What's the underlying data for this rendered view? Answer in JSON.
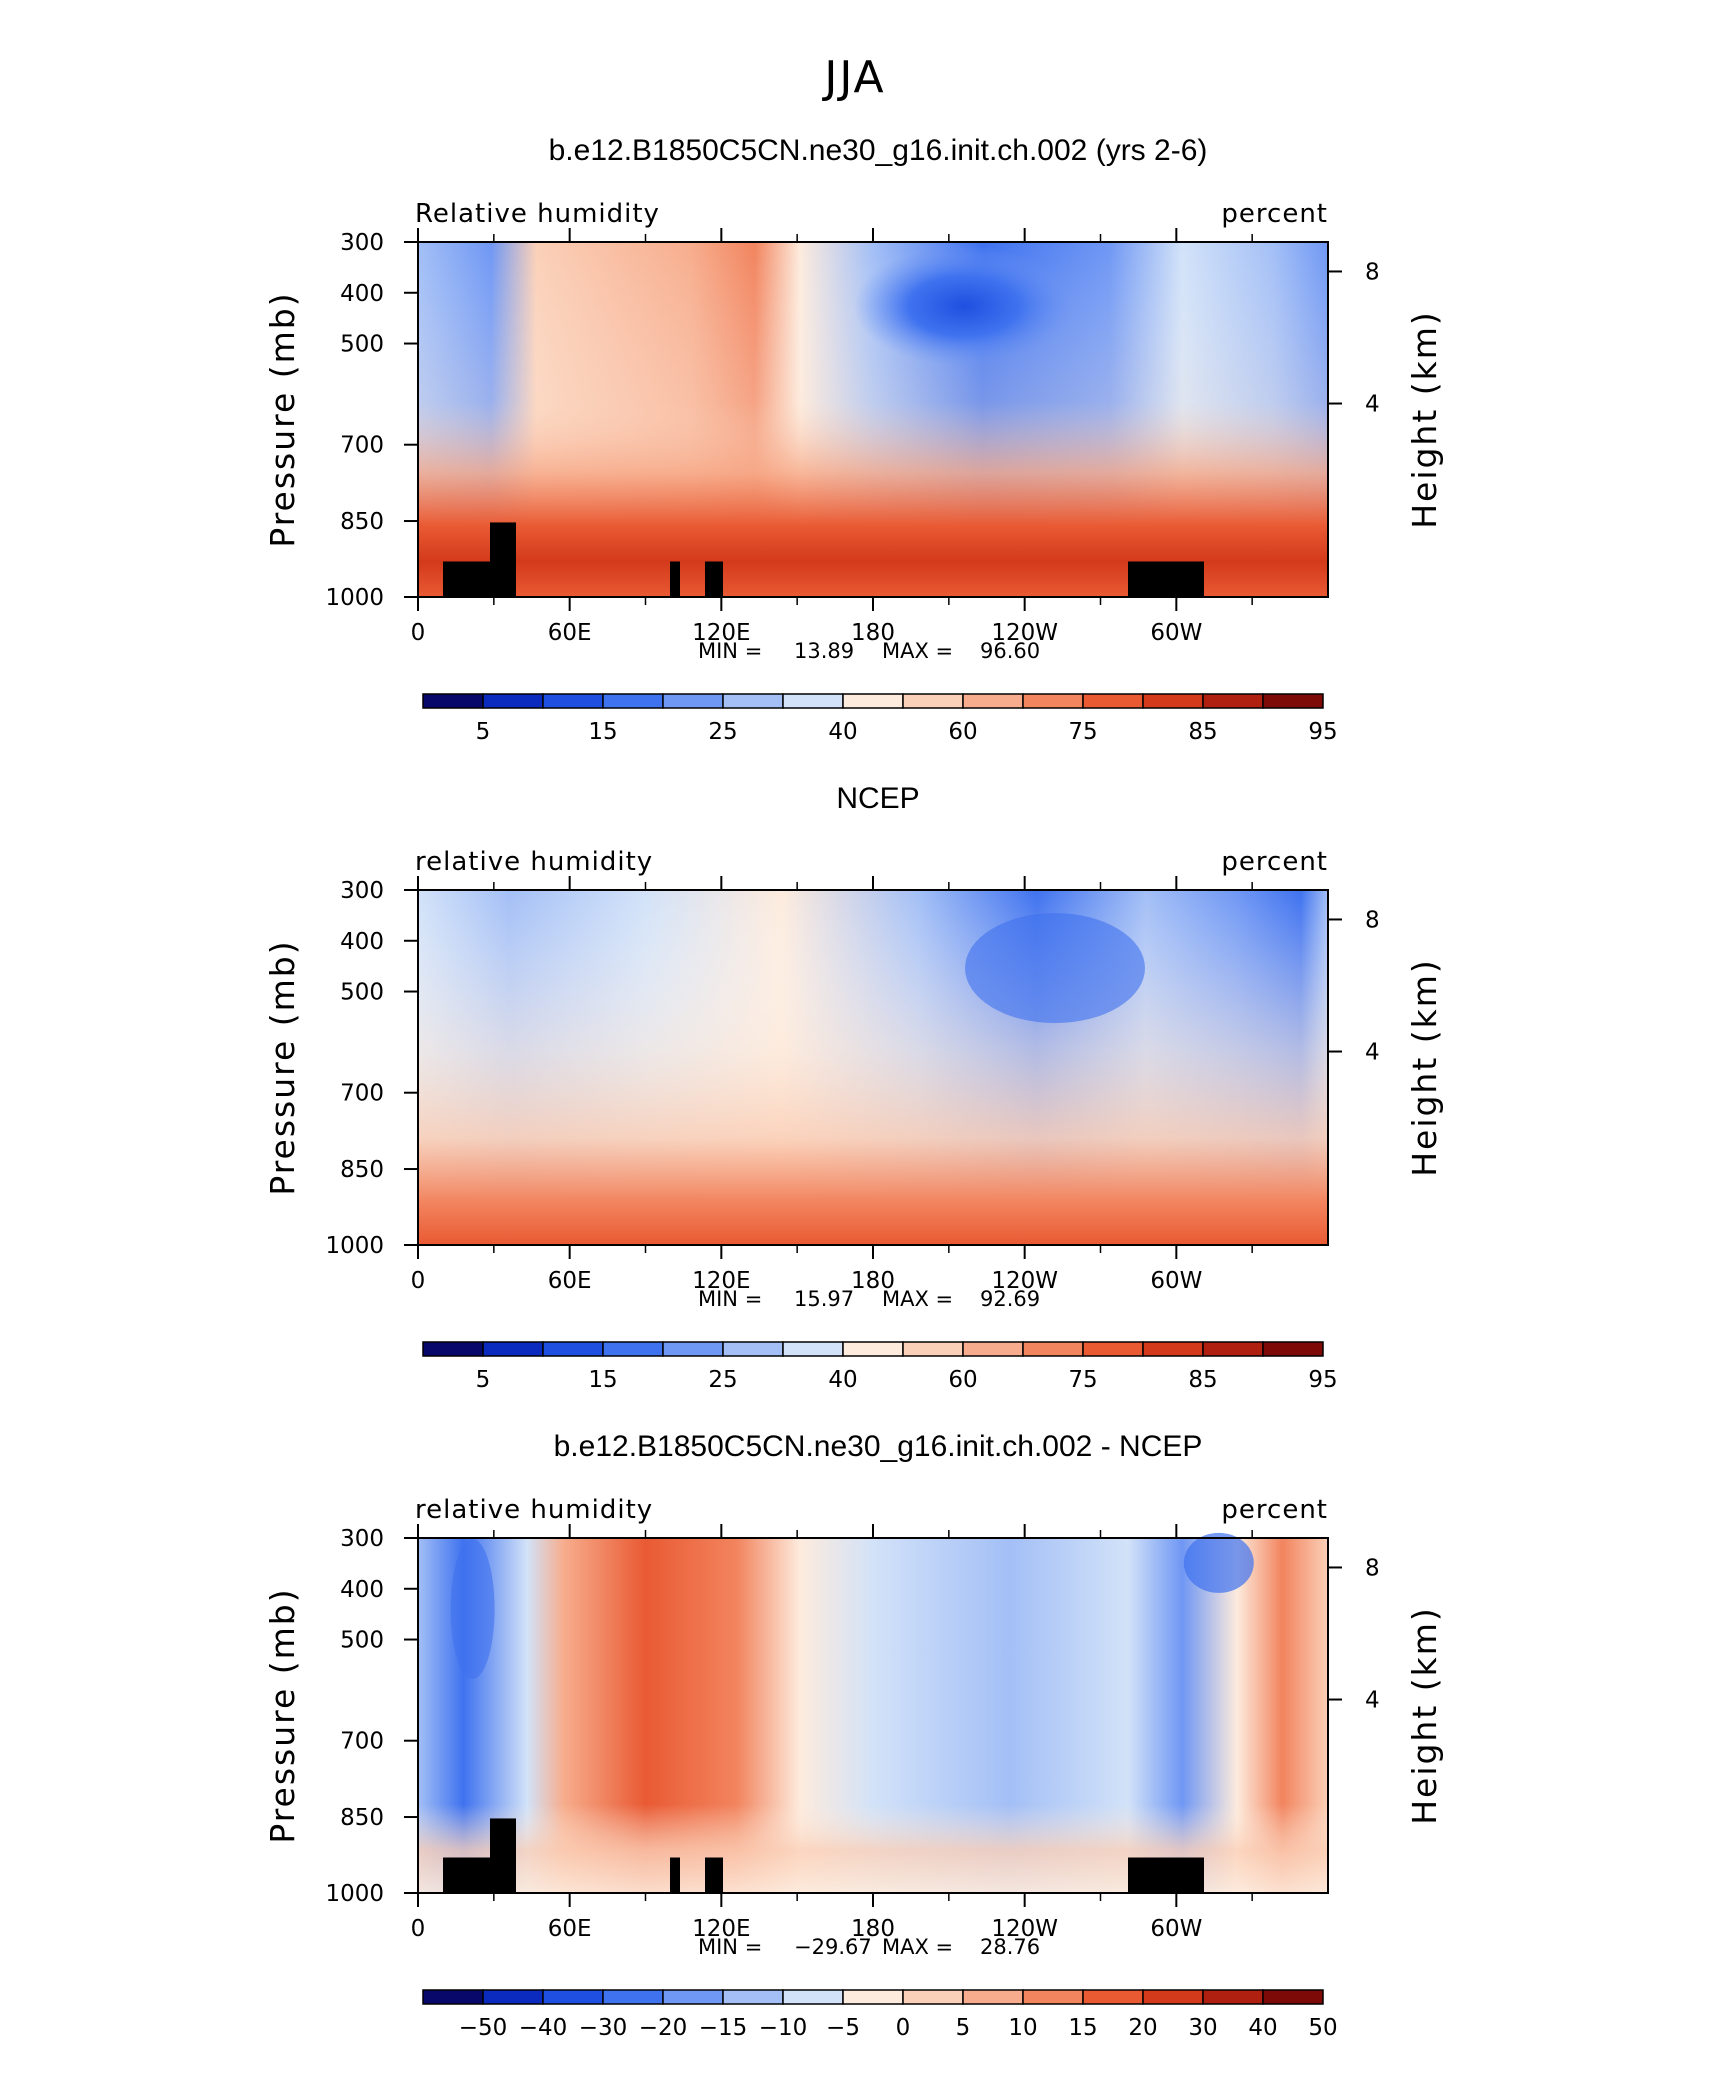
{
  "figure": {
    "title": "JJA"
  },
  "chart_data": [
    {
      "type": "heatmap",
      "title": "b.e12.B1850C5CN.ne30_g16.init.ch.002 (yrs 2-6)",
      "left_label": "Relative  humidity",
      "right_label": "percent",
      "ylabel": "Pressure  (mb)",
      "ylabel_right": "Height  (km)",
      "x_ticks": [
        "0",
        "60E",
        "120E",
        "180",
        "120W",
        "60W"
      ],
      "y_ticks": [
        "300",
        "400",
        "500",
        "700",
        "850",
        "1000"
      ],
      "y_right_ticks": [
        "8",
        "4"
      ],
      "xlim": [
        "0",
        "360"
      ],
      "ylim": [
        1000,
        300
      ],
      "min_label": "MIN =",
      "min": "13.89",
      "max_label": "MAX =",
      "max": "96.60",
      "colorbar_labels": [
        "5",
        "15",
        "25",
        "40",
        "60",
        "75",
        "85",
        "95"
      ],
      "terrain": true
    },
    {
      "type": "heatmap",
      "title": "NCEP",
      "left_label": "relative  humidity",
      "right_label": "percent",
      "ylabel": "Pressure  (mb)",
      "ylabel_right": "Height  (km)",
      "x_ticks": [
        "0",
        "60E",
        "120E",
        "180",
        "120W",
        "60W"
      ],
      "y_ticks": [
        "300",
        "400",
        "500",
        "700",
        "850",
        "1000"
      ],
      "y_right_ticks": [
        "8",
        "4"
      ],
      "xlim": [
        "0",
        "360"
      ],
      "ylim": [
        1000,
        300
      ],
      "min_label": "MIN =",
      "min": "15.97",
      "max_label": "MAX =",
      "max": "92.69",
      "colorbar_labels": [
        "5",
        "15",
        "25",
        "40",
        "60",
        "75",
        "85",
        "95"
      ],
      "terrain": false
    },
    {
      "type": "heatmap",
      "title": "b.e12.B1850C5CN.ne30_g16.init.ch.002 - NCEP",
      "left_label": "relative  humidity",
      "right_label": "percent",
      "ylabel": "Pressure  (mb)",
      "ylabel_right": "Height  (km)",
      "x_ticks": [
        "0",
        "60E",
        "120E",
        "180",
        "120W",
        "60W"
      ],
      "y_ticks": [
        "300",
        "400",
        "500",
        "700",
        "850",
        "1000"
      ],
      "y_right_ticks": [
        "8",
        "4"
      ],
      "xlim": [
        "0",
        "360"
      ],
      "ylim": [
        1000,
        300
      ],
      "min_label": "MIN =",
      "min": "−29.67",
      "max_label": "MAX =",
      "max": "28.76",
      "colorbar_labels": [
        "−50",
        "−40",
        "−30",
        "−20",
        "−15",
        "−10",
        "−5",
        "0",
        "5",
        "10",
        "15",
        "20",
        "30",
        "40",
        "50"
      ],
      "terrain": true
    }
  ],
  "colors": {
    "scale": [
      "#08086b",
      "#0a2bbd",
      "#1f4fe0",
      "#3f72ef",
      "#6f97f4",
      "#a3bff6",
      "#d2e2f8",
      "#fdebdd",
      "#fbd0b8",
      "#f7ad8d",
      "#f2845e",
      "#e95a33",
      "#d33a1b",
      "#b02010",
      "#7d0a07"
    ],
    "terrain": "#000000"
  }
}
